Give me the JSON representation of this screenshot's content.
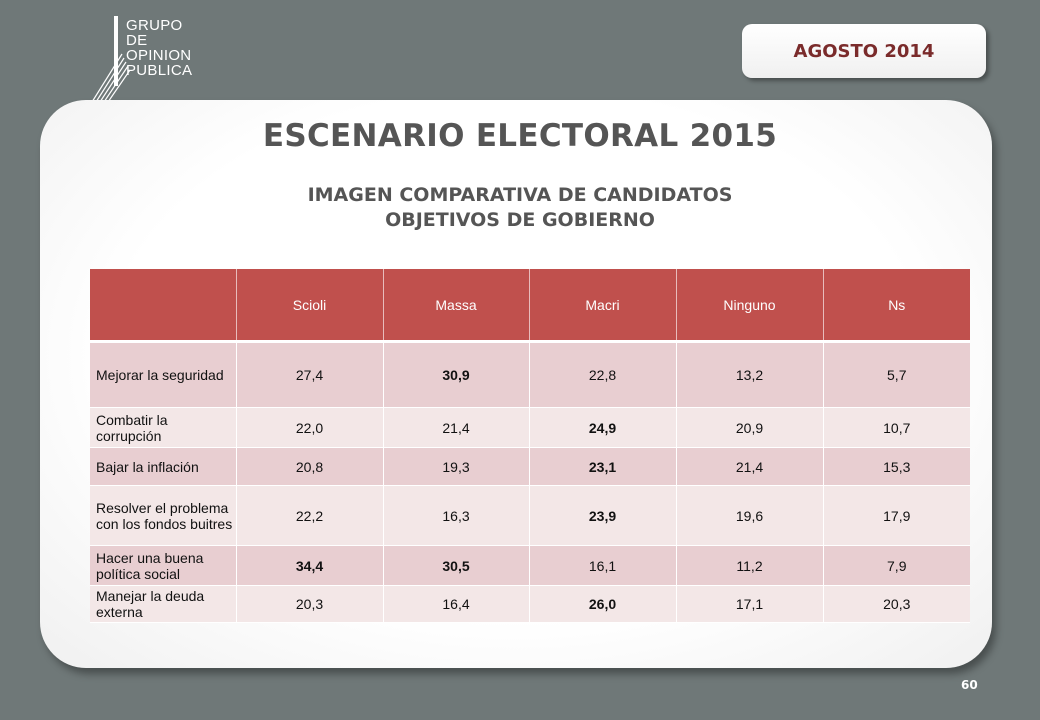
{
  "logo": {
    "lines": [
      "GRUPO",
      "DE",
      "OPINION",
      "PUBLICA"
    ]
  },
  "date_badge": "AGOSTO  2014",
  "title": "ESCENARIO ELECTORAL 2015",
  "subtitle1": "IMAGEN COMPARATIVA DE CANDIDATOS",
  "subtitle2": "OBJETIVOS DE GOBIERNO",
  "table": {
    "headers": [
      "",
      "Scioli",
      "Massa",
      "Macri",
      "Ninguno",
      "Ns"
    ],
    "rows": [
      {
        "label": " Mejorar la seguridad",
        "values": [
          "27,4",
          "30,9",
          "22,8",
          "13,2",
          "5,7"
        ],
        "bold": [
          1
        ]
      },
      {
        "label": " Combatir la corrupción",
        "values": [
          "22,0",
          "21,4",
          "24,9",
          "20,9",
          "10,7"
        ],
        "bold": [
          2
        ]
      },
      {
        "label": " Bajar la inflación",
        "values": [
          "20,8",
          "19,3",
          "23,1",
          "21,4",
          "15,3"
        ],
        "bold": [
          2
        ]
      },
      {
        "label": " Resolver el problema con los fondos buitres",
        "values": [
          "22,2",
          "16,3",
          "23,9",
          "19,6",
          "17,9"
        ],
        "bold": [
          2
        ]
      },
      {
        "label": " Hacer una buena política social",
        "values": [
          "34,4",
          "30,5",
          "16,1",
          "11,2",
          "7,9"
        ],
        "bold": [
          0,
          1
        ]
      },
      {
        "label": " Manejar la deuda externa",
        "values": [
          "20,3",
          "16,4",
          "26,0",
          "17,1",
          "20,3"
        ],
        "bold": [
          2
        ]
      }
    ]
  },
  "page_number": "60",
  "colors": {
    "header_bg": "#c0504d",
    "row_odd": "#e8ced1",
    "row_even": "#f3e7e7",
    "background": "#6f7878"
  }
}
